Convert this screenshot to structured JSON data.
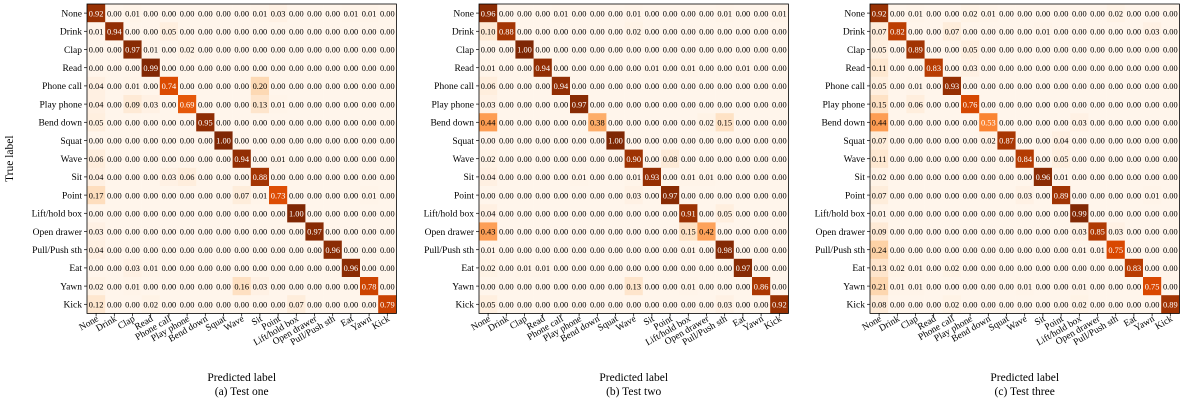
{
  "chart_data": [
    {
      "type": "heatmap",
      "caption": "(a) Test one",
      "xlabel": "Predicted label",
      "ylabel": "True label",
      "labels": [
        "None",
        "Drink",
        "Clap",
        "Read",
        "Phone call",
        "Play phone",
        "Bend down",
        "Squat",
        "Wave",
        "Sit",
        "Point",
        "Lift/hold box",
        "Open drawer",
        "Pull/Push sth",
        "Eat",
        "Yawn",
        "Kick"
      ],
      "matrix": [
        [
          0.92,
          0.0,
          0.01,
          0.0,
          0.0,
          0.0,
          0.0,
          0.0,
          0.0,
          0.01,
          0.03,
          0.0,
          0.0,
          0.0,
          0.01,
          0.01,
          0.0
        ],
        [
          0.01,
          0.94,
          0.0,
          0.0,
          0.05,
          0.0,
          0.0,
          0.0,
          0.0,
          0.0,
          0.0,
          0.0,
          0.0,
          0.0,
          0.0,
          0.0,
          0.0
        ],
        [
          0.0,
          0.0,
          0.97,
          0.01,
          0.0,
          0.02,
          0.0,
          0.0,
          0.0,
          0.0,
          0.0,
          0.0,
          0.0,
          0.0,
          0.0,
          0.0,
          0.0
        ],
        [
          0.0,
          0.0,
          0.0,
          0.99,
          0.0,
          0.0,
          0.0,
          0.0,
          0.0,
          0.0,
          0.0,
          0.0,
          0.0,
          0.0,
          0.0,
          0.0,
          0.0
        ],
        [
          0.04,
          0.0,
          0.01,
          0.0,
          0.74,
          0.0,
          0.0,
          0.0,
          0.0,
          0.2,
          0.0,
          0.0,
          0.0,
          0.0,
          0.0,
          0.0,
          0.0
        ],
        [
          0.04,
          0.0,
          0.09,
          0.03,
          0.0,
          0.69,
          0.0,
          0.0,
          0.0,
          0.13,
          0.01,
          0.0,
          0.0,
          0.0,
          0.0,
          0.0,
          0.0
        ],
        [
          0.05,
          0.0,
          0.0,
          0.0,
          0.0,
          0.0,
          0.95,
          0.0,
          0.0,
          0.0,
          0.0,
          0.0,
          0.0,
          0.0,
          0.0,
          0.0,
          0.0
        ],
        [
          0.0,
          0.0,
          0.0,
          0.0,
          0.0,
          0.0,
          0.0,
          1.0,
          0.0,
          0.0,
          0.0,
          0.0,
          0.0,
          0.0,
          0.0,
          0.0,
          0.0
        ],
        [
          0.06,
          0.0,
          0.0,
          0.0,
          0.0,
          0.0,
          0.0,
          0.0,
          0.94,
          0.0,
          0.01,
          0.0,
          0.0,
          0.0,
          0.0,
          0.0,
          0.0
        ],
        [
          0.04,
          0.0,
          0.0,
          0.0,
          0.03,
          0.06,
          0.0,
          0.0,
          0.0,
          0.88,
          0.0,
          0.0,
          0.0,
          0.0,
          0.0,
          0.0,
          0.0
        ],
        [
          0.17,
          0.0,
          0.0,
          0.0,
          0.0,
          0.0,
          0.0,
          0.0,
          0.07,
          0.01,
          0.73,
          0.0,
          0.0,
          0.0,
          0.0,
          0.01,
          0.0
        ],
        [
          0.0,
          0.0,
          0.0,
          0.0,
          0.0,
          0.0,
          0.0,
          0.0,
          0.0,
          0.0,
          0.0,
          1.0,
          0.0,
          0.0,
          0.0,
          0.0,
          0.0
        ],
        [
          0.03,
          0.0,
          0.0,
          0.0,
          0.0,
          0.0,
          0.0,
          0.0,
          0.0,
          0.0,
          0.0,
          0.0,
          0.97,
          0.0,
          0.0,
          0.0,
          0.0
        ],
        [
          0.04,
          0.0,
          0.0,
          0.0,
          0.0,
          0.0,
          0.0,
          0.0,
          0.0,
          0.0,
          0.0,
          0.0,
          0.0,
          0.96,
          0.0,
          0.0,
          0.0
        ],
        [
          0.0,
          0.0,
          0.03,
          0.01,
          0.0,
          0.0,
          0.0,
          0.0,
          0.0,
          0.0,
          0.0,
          0.0,
          0.0,
          0.0,
          0.96,
          0.0,
          0.0
        ],
        [
          0.02,
          0.0,
          0.01,
          0.0,
          0.0,
          0.0,
          0.0,
          0.0,
          0.16,
          0.03,
          0.0,
          0.0,
          0.0,
          0.0,
          0.0,
          0.78,
          0.0
        ],
        [
          0.12,
          0.0,
          0.0,
          0.02,
          0.0,
          0.0,
          0.0,
          0.0,
          0.0,
          0.0,
          0.0,
          0.07,
          0.0,
          0.0,
          0.0,
          0.0,
          0.79
        ]
      ]
    },
    {
      "type": "heatmap",
      "caption": "(b) Test two",
      "xlabel": "Predicted label",
      "ylabel": "",
      "labels": [
        "None",
        "Drink",
        "Clap",
        "Read",
        "Phone call",
        "Play phone",
        "Bend down",
        "Squat",
        "Wave",
        "Sit",
        "Point",
        "Lift/hold box",
        "Open drawer",
        "Pull/Push sth",
        "Eat",
        "Yawn",
        "Kick"
      ],
      "matrix": [
        [
          0.96,
          0.0,
          0.0,
          0.0,
          0.01,
          0.0,
          0.0,
          0.0,
          0.01,
          0.0,
          0.0,
          0.0,
          0.0,
          0.01,
          0.0,
          0.0,
          0.01
        ],
        [
          0.1,
          0.88,
          0.0,
          0.0,
          0.0,
          0.0,
          0.0,
          0.0,
          0.02,
          0.0,
          0.0,
          0.0,
          0.0,
          0.0,
          0.0,
          0.0,
          0.0
        ],
        [
          0.0,
          0.0,
          1.0,
          0.0,
          0.0,
          0.0,
          0.0,
          0.0,
          0.0,
          0.0,
          0.0,
          0.0,
          0.0,
          0.0,
          0.0,
          0.0,
          0.0
        ],
        [
          0.01,
          0.0,
          0.0,
          0.94,
          0.0,
          0.0,
          0.0,
          0.0,
          0.0,
          0.01,
          0.0,
          0.01,
          0.0,
          0.0,
          0.01,
          0.0,
          0.0
        ],
        [
          0.06,
          0.0,
          0.0,
          0.0,
          0.94,
          0.0,
          0.0,
          0.0,
          0.0,
          0.0,
          0.0,
          0.0,
          0.0,
          0.0,
          0.0,
          0.0,
          0.0
        ],
        [
          0.03,
          0.0,
          0.0,
          0.0,
          0.0,
          0.97,
          0.0,
          0.0,
          0.0,
          0.0,
          0.0,
          0.0,
          0.0,
          0.0,
          0.0,
          0.0,
          0.0
        ],
        [
          0.44,
          0.0,
          0.0,
          0.0,
          0.0,
          0.0,
          0.38,
          0.0,
          0.0,
          0.0,
          0.0,
          0.0,
          0.02,
          0.15,
          0.0,
          0.0,
          0.0
        ],
        [
          0.0,
          0.0,
          0.0,
          0.0,
          0.0,
          0.0,
          0.0,
          1.0,
          0.0,
          0.0,
          0.0,
          0.0,
          0.0,
          0.0,
          0.0,
          0.0,
          0.0
        ],
        [
          0.02,
          0.0,
          0.0,
          0.0,
          0.0,
          0.0,
          0.0,
          0.0,
          0.9,
          0.0,
          0.08,
          0.0,
          0.0,
          0.0,
          0.0,
          0.0,
          0.0
        ],
        [
          0.04,
          0.0,
          0.0,
          0.0,
          0.0,
          0.01,
          0.0,
          0.0,
          0.01,
          0.93,
          0.0,
          0.01,
          0.01,
          0.0,
          0.0,
          0.0,
          0.0
        ],
        [
          0.0,
          0.0,
          0.0,
          0.0,
          0.0,
          0.0,
          0.0,
          0.0,
          0.03,
          0.0,
          0.97,
          0.0,
          0.0,
          0.0,
          0.0,
          0.0,
          0.0
        ],
        [
          0.04,
          0.0,
          0.0,
          0.0,
          0.0,
          0.0,
          0.0,
          0.0,
          0.0,
          0.0,
          0.0,
          0.91,
          0.0,
          0.05,
          0.0,
          0.0,
          0.0
        ],
        [
          0.43,
          0.0,
          0.0,
          0.0,
          0.0,
          0.0,
          0.0,
          0.0,
          0.0,
          0.0,
          0.0,
          0.15,
          0.42,
          0.0,
          0.0,
          0.0,
          0.0
        ],
        [
          0.01,
          0.0,
          0.0,
          0.0,
          0.0,
          0.0,
          0.0,
          0.0,
          0.0,
          0.0,
          0.0,
          0.01,
          0.0,
          0.98,
          0.0,
          0.0,
          0.0
        ],
        [
          0.02,
          0.0,
          0.01,
          0.01,
          0.0,
          0.0,
          0.0,
          0.0,
          0.0,
          0.0,
          0.0,
          0.0,
          0.0,
          0.0,
          0.97,
          0.0,
          0.0
        ],
        [
          0.0,
          0.0,
          0.0,
          0.0,
          0.0,
          0.0,
          0.0,
          0.0,
          0.13,
          0.0,
          0.0,
          0.01,
          0.0,
          0.0,
          0.0,
          0.86,
          0.0
        ],
        [
          0.05,
          0.0,
          0.0,
          0.0,
          0.0,
          0.0,
          0.0,
          0.0,
          0.0,
          0.0,
          0.0,
          0.0,
          0.0,
          0.03,
          0.0,
          0.0,
          0.92
        ]
      ]
    },
    {
      "type": "heatmap",
      "caption": "(c) Test three",
      "xlabel": "Predicted label",
      "ylabel": "",
      "labels": [
        "None",
        "Drink",
        "Clap",
        "Read",
        "Phone call",
        "Play phone",
        "Bend down",
        "Squat",
        "Wave",
        "Sit",
        "Point",
        "Lift/hold box",
        "Open drawer",
        "Pull/Push sth",
        "Eat",
        "Yawn",
        "Kick"
      ],
      "matrix": [
        [
          0.92,
          0.0,
          0.01,
          0.0,
          0.0,
          0.02,
          0.01,
          0.0,
          0.0,
          0.0,
          0.0,
          0.0,
          0.0,
          0.02,
          0.0,
          0.0,
          0.0
        ],
        [
          0.07,
          0.82,
          0.0,
          0.0,
          0.07,
          0.0,
          0.0,
          0.0,
          0.0,
          0.01,
          0.0,
          0.0,
          0.0,
          0.0,
          0.0,
          0.03,
          0.0
        ],
        [
          0.05,
          0.0,
          0.89,
          0.0,
          0.0,
          0.05,
          0.0,
          0.0,
          0.0,
          0.0,
          0.0,
          0.0,
          0.0,
          0.0,
          0.0,
          0.0,
          0.0
        ],
        [
          0.11,
          0.0,
          0.0,
          0.83,
          0.0,
          0.03,
          0.0,
          0.0,
          0.0,
          0.0,
          0.0,
          0.0,
          0.0,
          0.0,
          0.0,
          0.0,
          0.0
        ],
        [
          0.05,
          0.0,
          0.01,
          0.0,
          0.93,
          0.0,
          0.0,
          0.0,
          0.0,
          0.0,
          0.0,
          0.0,
          0.0,
          0.0,
          0.0,
          0.0,
          0.0
        ],
        [
          0.15,
          0.0,
          0.06,
          0.0,
          0.0,
          0.76,
          0.0,
          0.0,
          0.0,
          0.0,
          0.0,
          0.0,
          0.0,
          0.0,
          0.0,
          0.0,
          0.0
        ],
        [
          0.44,
          0.0,
          0.0,
          0.0,
          0.0,
          0.0,
          0.53,
          0.0,
          0.0,
          0.0,
          0.0,
          0.03,
          0.0,
          0.0,
          0.0,
          0.0,
          0.0
        ],
        [
          0.07,
          0.0,
          0.0,
          0.0,
          0.0,
          0.0,
          0.02,
          0.87,
          0.0,
          0.0,
          0.04,
          0.0,
          0.0,
          0.0,
          0.0,
          0.0,
          0.0
        ],
        [
          0.11,
          0.0,
          0.0,
          0.0,
          0.0,
          0.0,
          0.0,
          0.0,
          0.84,
          0.0,
          0.05,
          0.0,
          0.0,
          0.0,
          0.0,
          0.0,
          0.0
        ],
        [
          0.02,
          0.0,
          0.0,
          0.0,
          0.0,
          0.0,
          0.0,
          0.0,
          0.0,
          0.96,
          0.01,
          0.0,
          0.0,
          0.0,
          0.0,
          0.0,
          0.0
        ],
        [
          0.07,
          0.0,
          0.0,
          0.0,
          0.0,
          0.0,
          0.0,
          0.0,
          0.03,
          0.0,
          0.89,
          0.0,
          0.0,
          0.0,
          0.0,
          0.01,
          0.0
        ],
        [
          0.01,
          0.0,
          0.0,
          0.0,
          0.0,
          0.0,
          0.0,
          0.0,
          0.0,
          0.0,
          0.0,
          0.99,
          0.0,
          0.0,
          0.0,
          0.0,
          0.0
        ],
        [
          0.09,
          0.0,
          0.0,
          0.0,
          0.0,
          0.0,
          0.0,
          0.0,
          0.0,
          0.0,
          0.0,
          0.03,
          0.85,
          0.03,
          0.0,
          0.0,
          0.0
        ],
        [
          0.24,
          0.0,
          0.0,
          0.0,
          0.0,
          0.0,
          0.0,
          0.0,
          0.0,
          0.0,
          0.0,
          0.01,
          0.01,
          0.75,
          0.0,
          0.0,
          0.0
        ],
        [
          0.13,
          0.02,
          0.01,
          0.0,
          0.02,
          0.0,
          0.0,
          0.0,
          0.0,
          0.0,
          0.0,
          0.0,
          0.0,
          0.0,
          0.83,
          0.0,
          0.0
        ],
        [
          0.21,
          0.01,
          0.01,
          0.0,
          0.0,
          0.0,
          0.0,
          0.0,
          0.01,
          0.0,
          0.0,
          0.01,
          0.0,
          0.0,
          0.0,
          0.75,
          0.0
        ],
        [
          0.08,
          0.0,
          0.0,
          0.0,
          0.02,
          0.0,
          0.0,
          0.0,
          0.0,
          0.0,
          0.0,
          0.02,
          0.0,
          0.0,
          0.0,
          0.0,
          0.89
        ]
      ]
    }
  ]
}
